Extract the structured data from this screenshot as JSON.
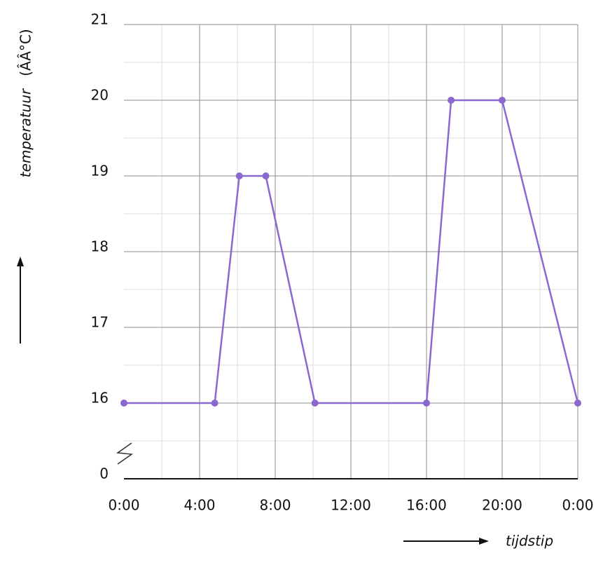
{
  "chart_data": {
    "type": "line",
    "y_label": "temperatuur",
    "y_unit": "(ÂÂ°C)",
    "x_label": "tijdstip",
    "x": [
      0,
      4.8,
      6.1,
      7.5,
      10.1,
      16,
      17.3,
      20,
      24
    ],
    "series": [
      {
        "color": "#8b68d0",
        "values": [
          16,
          16,
          19,
          19,
          16,
          16,
          20,
          20,
          16
        ]
      }
    ],
    "xlim": [
      0,
      24
    ],
    "xticks": [
      {
        "value": 0,
        "label": "0:00"
      },
      {
        "value": 4,
        "label": "4:00"
      },
      {
        "value": 8,
        "label": "8:00"
      },
      {
        "value": 12,
        "label": "12:00"
      },
      {
        "value": 16,
        "label": "16:00"
      },
      {
        "value": 20,
        "label": "20:00"
      },
      {
        "value": 24,
        "label": "0:00"
      }
    ],
    "ylim": [
      0,
      21
    ],
    "yticks": [
      0,
      16,
      17,
      18,
      19,
      20,
      21
    ],
    "axis_break": true,
    "grid": true
  }
}
